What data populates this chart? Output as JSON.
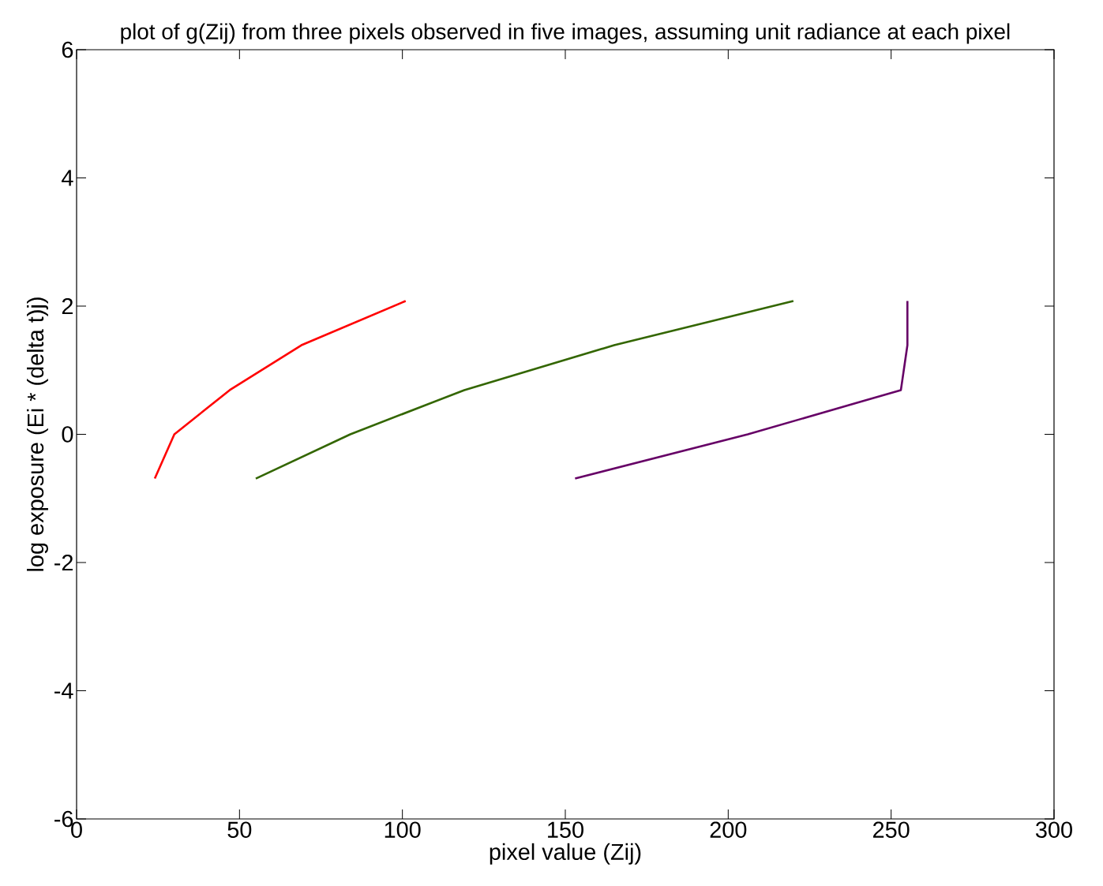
{
  "chart_data": {
    "type": "line",
    "title": "plot of g(Zij) from three pixels observed in five images, assuming unit radiance at each pixel",
    "xlabel": "pixel value (Zij)",
    "ylabel": "log exposure (Ei * (delta t)j)",
    "xlim": [
      0,
      300
    ],
    "ylim": [
      -6,
      6
    ],
    "xticks": [
      0,
      50,
      100,
      150,
      200,
      250,
      300
    ],
    "yticks": [
      -6,
      -4,
      -2,
      0,
      2,
      4,
      6
    ],
    "grid": false,
    "marker": "none",
    "line_style": "solid",
    "series": [
      {
        "color": "#ff0000",
        "x": [
          24,
          30,
          47,
          69,
          101
        ],
        "values": [
          -0.69,
          0,
          0.69,
          1.39,
          2.08
        ]
      },
      {
        "color": "#336600",
        "x": [
          55,
          84,
          119,
          165,
          220
        ],
        "values": [
          -0.69,
          0,
          0.69,
          1.39,
          2.08
        ]
      },
      {
        "color": "#660066",
        "x": [
          153,
          206,
          253,
          255,
          255
        ],
        "values": [
          -0.69,
          0,
          0.69,
          1.39,
          2.08
        ]
      }
    ]
  }
}
